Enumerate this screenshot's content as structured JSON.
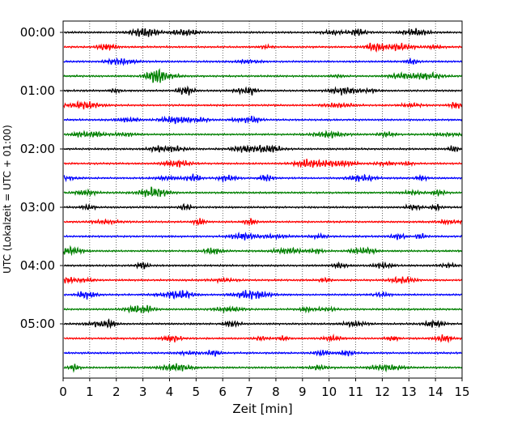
{
  "chart_data": {
    "type": "line",
    "xlabel": "Zeit  [min]",
    "ylabel": "UTC (Lokalzeit = UTC + 01:00)",
    "xlim": [
      0,
      15
    ],
    "xticks": [
      0,
      1,
      2,
      3,
      4,
      5,
      6,
      7,
      8,
      9,
      10,
      11,
      12,
      13,
      14,
      15
    ],
    "xtick_labels": [
      "0",
      "1",
      "2",
      "3",
      "4",
      "5",
      "6",
      "7",
      "8",
      "9",
      "10",
      "11",
      "12",
      "13",
      "14",
      "15"
    ],
    "ytick_labels": [
      "00:00",
      "01:00",
      "02:00",
      "03:00",
      "04:00",
      "05:00"
    ],
    "grid_x": true,
    "trace_interval_min": 15,
    "trace_count": 24,
    "trace_colors": [
      "#000000",
      "#ff0000",
      "#0000ff",
      "#008000"
    ]
  }
}
